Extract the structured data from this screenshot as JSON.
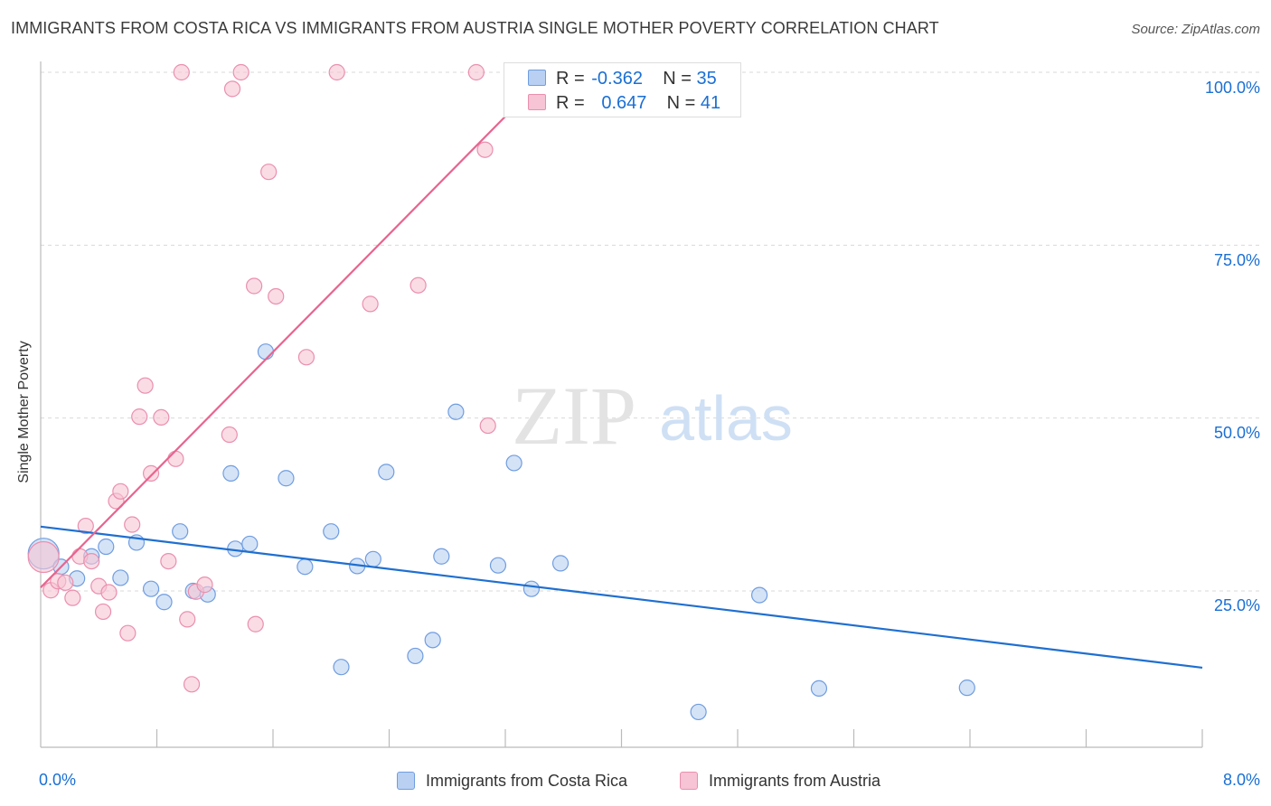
{
  "title": "IMMIGRANTS FROM COSTA RICA VS IMMIGRANTS FROM AUSTRIA SINGLE MOTHER POVERTY CORRELATION CHART",
  "source": "Source: ZipAtlas.com",
  "watermark": {
    "zip": "ZIP",
    "atlas": "atlas"
  },
  "colors": {
    "blue_fill": "#b9d0f2",
    "blue_stroke": "#6f9de0",
    "blue_line": "#1f6fd0",
    "pink_fill": "#f6c4d4",
    "pink_stroke": "#ea8fae",
    "pink_line": "#e8648f",
    "tick_text": "#1a6fd4",
    "grid": "#d9d9d9"
  },
  "legend": {
    "series1": {
      "r_label": "R =",
      "r_value": "-0.362",
      "n_label": "N =",
      "n_value": "35"
    },
    "series2": {
      "r_label": "R =",
      "r_value": "0.647",
      "n_label": "N =",
      "n_value": "41"
    }
  },
  "bottom_legend": {
    "series1": "Immigrants from Costa Rica",
    "series2": "Immigrants from Austria"
  },
  "axis": {
    "ylabel": "Single Mother Poverty",
    "y_ticks": [
      "100.0%",
      "75.0%",
      "50.0%",
      "25.0%"
    ],
    "x_min_label": "0.0%",
    "x_max_label": "8.0%"
  },
  "chart_data": {
    "type": "scatter",
    "title": "IMMIGRANTS FROM COSTA RICA VS IMMIGRANTS FROM AUSTRIA SINGLE MOTHER POVERTY CORRELATION CHART",
    "xlabel": "",
    "ylabel": "Single Mother Poverty",
    "xlim": [
      0,
      8
    ],
    "ylim": [
      3,
      105
    ],
    "x_unit": "%",
    "y_unit": "%",
    "y_ticks": [
      25,
      50,
      75,
      100
    ],
    "grid": true,
    "legend": "top-center",
    "series": [
      {
        "name": "Immigrants from Costa Rica",
        "R": -0.362,
        "N": 35,
        "trend": {
          "x": [
            0,
            8
          ],
          "y": [
            34.3,
            13.9
          ]
        },
        "points": [
          {
            "x": 0.02,
            "y": 30.4,
            "big": true
          },
          {
            "x": 0.14,
            "y": 28.5
          },
          {
            "x": 0.25,
            "y": 26.8
          },
          {
            "x": 0.35,
            "y": 30.0
          },
          {
            "x": 0.45,
            "y": 31.4
          },
          {
            "x": 0.55,
            "y": 26.9
          },
          {
            "x": 0.66,
            "y": 32.0
          },
          {
            "x": 0.76,
            "y": 25.3
          },
          {
            "x": 0.85,
            "y": 23.4
          },
          {
            "x": 0.96,
            "y": 33.6
          },
          {
            "x": 1.05,
            "y": 25.0
          },
          {
            "x": 1.15,
            "y": 24.5
          },
          {
            "x": 1.31,
            "y": 42.0
          },
          {
            "x": 1.34,
            "y": 31.1
          },
          {
            "x": 1.44,
            "y": 31.8
          },
          {
            "x": 1.55,
            "y": 59.6
          },
          {
            "x": 1.69,
            "y": 41.3
          },
          {
            "x": 1.82,
            "y": 28.5
          },
          {
            "x": 2.0,
            "y": 33.6
          },
          {
            "x": 2.07,
            "y": 14.0
          },
          {
            "x": 2.18,
            "y": 28.6
          },
          {
            "x": 2.29,
            "y": 29.6
          },
          {
            "x": 2.38,
            "y": 42.2
          },
          {
            "x": 2.58,
            "y": 15.6
          },
          {
            "x": 2.7,
            "y": 17.9
          },
          {
            "x": 2.76,
            "y": 30.0
          },
          {
            "x": 2.86,
            "y": 50.9
          },
          {
            "x": 3.15,
            "y": 28.7
          },
          {
            "x": 3.26,
            "y": 43.5
          },
          {
            "x": 3.38,
            "y": 25.3
          },
          {
            "x": 3.58,
            "y": 29.0
          },
          {
            "x": 4.53,
            "y": 7.5
          },
          {
            "x": 4.95,
            "y": 24.4
          },
          {
            "x": 5.36,
            "y": 10.9
          },
          {
            "x": 6.38,
            "y": 11.0
          }
        ]
      },
      {
        "name": "Immigrants from Austria",
        "R": 0.647,
        "N": 41,
        "trend": {
          "x": [
            0,
            3.5
          ],
          "y": [
            25.5,
            100.0
          ]
        },
        "points": [
          {
            "x": 0.02,
            "y": 29.9,
            "big": true
          },
          {
            "x": 0.07,
            "y": 25.1
          },
          {
            "x": 0.12,
            "y": 26.4
          },
          {
            "x": 0.17,
            "y": 26.2
          },
          {
            "x": 0.22,
            "y": 24.0
          },
          {
            "x": 0.27,
            "y": 30.0
          },
          {
            "x": 0.31,
            "y": 34.4
          },
          {
            "x": 0.35,
            "y": 29.3
          },
          {
            "x": 0.4,
            "y": 25.7
          },
          {
            "x": 0.43,
            "y": 22.0
          },
          {
            "x": 0.47,
            "y": 24.8
          },
          {
            "x": 0.52,
            "y": 38.0
          },
          {
            "x": 0.55,
            "y": 39.4
          },
          {
            "x": 0.6,
            "y": 18.9
          },
          {
            "x": 0.63,
            "y": 34.6
          },
          {
            "x": 0.68,
            "y": 50.2
          },
          {
            "x": 0.72,
            "y": 54.7
          },
          {
            "x": 0.76,
            "y": 42.0
          },
          {
            "x": 0.83,
            "y": 50.1
          },
          {
            "x": 0.88,
            "y": 29.3
          },
          {
            "x": 0.93,
            "y": 44.1
          },
          {
            "x": 0.97,
            "y": 100.0
          },
          {
            "x": 1.01,
            "y": 20.9
          },
          {
            "x": 1.04,
            "y": 11.5
          },
          {
            "x": 1.07,
            "y": 24.9
          },
          {
            "x": 1.13,
            "y": 25.9
          },
          {
            "x": 1.3,
            "y": 47.6
          },
          {
            "x": 1.32,
            "y": 97.6
          },
          {
            "x": 1.38,
            "y": 100.0
          },
          {
            "x": 1.47,
            "y": 69.1
          },
          {
            "x": 1.48,
            "y": 20.2
          },
          {
            "x": 1.57,
            "y": 85.6
          },
          {
            "x": 1.62,
            "y": 67.6
          },
          {
            "x": 1.83,
            "y": 58.8
          },
          {
            "x": 2.04,
            "y": 100.0
          },
          {
            "x": 2.27,
            "y": 66.5
          },
          {
            "x": 2.6,
            "y": 69.2
          },
          {
            "x": 3.0,
            "y": 100.0
          },
          {
            "x": 3.06,
            "y": 88.8
          },
          {
            "x": 3.08,
            "y": 48.9
          },
          {
            "x": 3.45,
            "y": 97.8
          }
        ]
      }
    ]
  }
}
